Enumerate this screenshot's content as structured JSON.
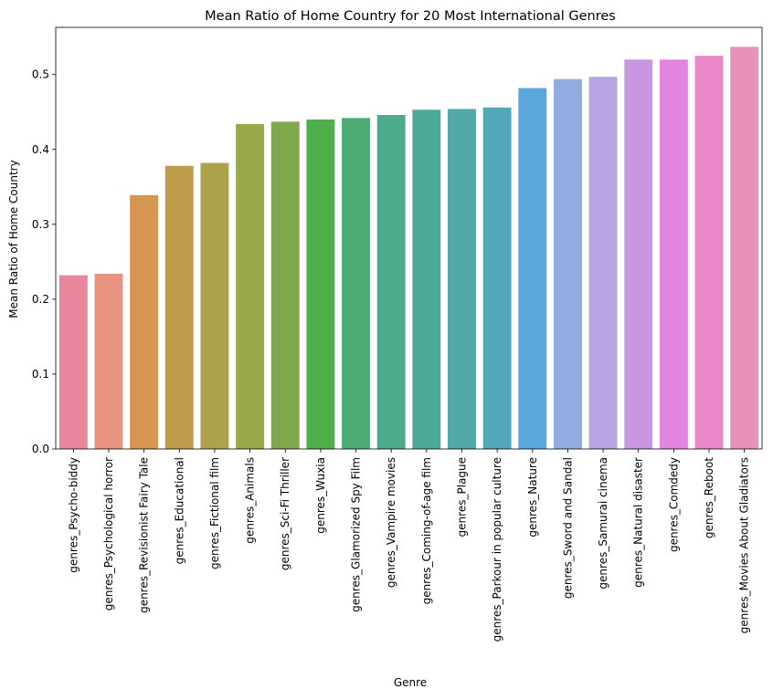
{
  "chart_data": {
    "type": "bar",
    "title": "Mean Ratio of Home Country for 20 Most International Genres",
    "xlabel": "Genre",
    "ylabel": "Mean Ratio of Home Country",
    "ylim": [
      0,
      0.563
    ],
    "yticks": [
      0.0,
      0.1,
      0.2,
      0.3,
      0.4,
      0.5
    ],
    "ytick_labels": [
      "0.0",
      "0.1",
      "0.2",
      "0.3",
      "0.4",
      "0.5"
    ],
    "grid": false,
    "categories": [
      "genres_Psycho-biddy",
      "genres_Psychological horror",
      "genres_Revisionist Fairy Tale",
      "genres_Educational",
      "genres_Fictional film",
      "genres_Animals",
      "genres_Sci-Fi Thriller",
      "genres_Wuxia",
      "genres_Glamorized Spy Film",
      "genres_Vampire movies",
      "genres_Coming-of-age film",
      "genres_Plague",
      "genres_Parkour in popular culture",
      "genres_Nature",
      "genres_Sword and Sandal",
      "genres_Samurai cinema",
      "genres_Natural disaster",
      "genres_Comdedy",
      "genres_Reboot",
      "genres_Movies About Gladiators"
    ],
    "values": [
      0.232,
      0.234,
      0.339,
      0.378,
      0.382,
      0.434,
      0.437,
      0.44,
      0.442,
      0.446,
      0.453,
      0.454,
      0.456,
      0.482,
      0.494,
      0.497,
      0.52,
      0.52,
      0.525,
      0.537
    ],
    "colors": [
      "#e8879c",
      "#e8937f",
      "#d89552",
      "#bf9b4c",
      "#aea24c",
      "#9aa84c",
      "#80a74b",
      "#4fae4b",
      "#4eab74",
      "#4eaa8c",
      "#4fa99b",
      "#50a8a7",
      "#52a8b8",
      "#5ba6dc",
      "#92acdf",
      "#b8a4e3",
      "#c996e2",
      "#e384e1",
      "#ea87c9",
      "#e891b9"
    ]
  }
}
